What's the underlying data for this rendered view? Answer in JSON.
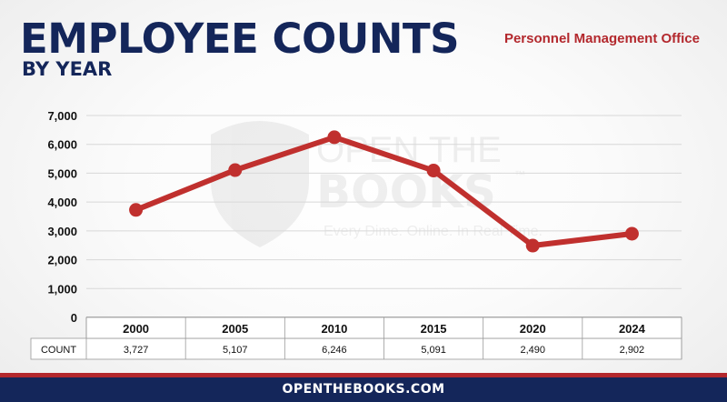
{
  "header": {
    "title": "EMPLOYEE COUNTS",
    "subtitle": "BY YEAR",
    "agency": "Personnel Management Office"
  },
  "watermark": {
    "line1": "OPEN THE",
    "line2": "BOOKS",
    "trademark": "™",
    "tagline": "Every Dime. Online. In Real Time."
  },
  "footer": {
    "site": "OPENTHEBOOKS.COM"
  },
  "colors": {
    "navy": "#14265a",
    "red": "#b3282d",
    "line": "#c0302e"
  },
  "chart_data": {
    "type": "line",
    "categories": [
      "2000",
      "2005",
      "2010",
      "2015",
      "2020",
      "2024"
    ],
    "values": [
      3727,
      5107,
      6246,
      5091,
      2490,
      2902
    ],
    "value_labels": [
      "3,727",
      "5,107",
      "6,246",
      "5,091",
      "2,490",
      "2,902"
    ],
    "ylim": [
      0,
      7000
    ],
    "yticks": [
      0,
      1000,
      2000,
      3000,
      4000,
      5000,
      6000,
      7000
    ],
    "ytick_labels": [
      "0",
      "1,000",
      "2,000",
      "3,000",
      "4,000",
      "5,000",
      "6,000",
      "7,000"
    ],
    "table_row_label": "COUNT",
    "grid": true,
    "legend": "none"
  }
}
